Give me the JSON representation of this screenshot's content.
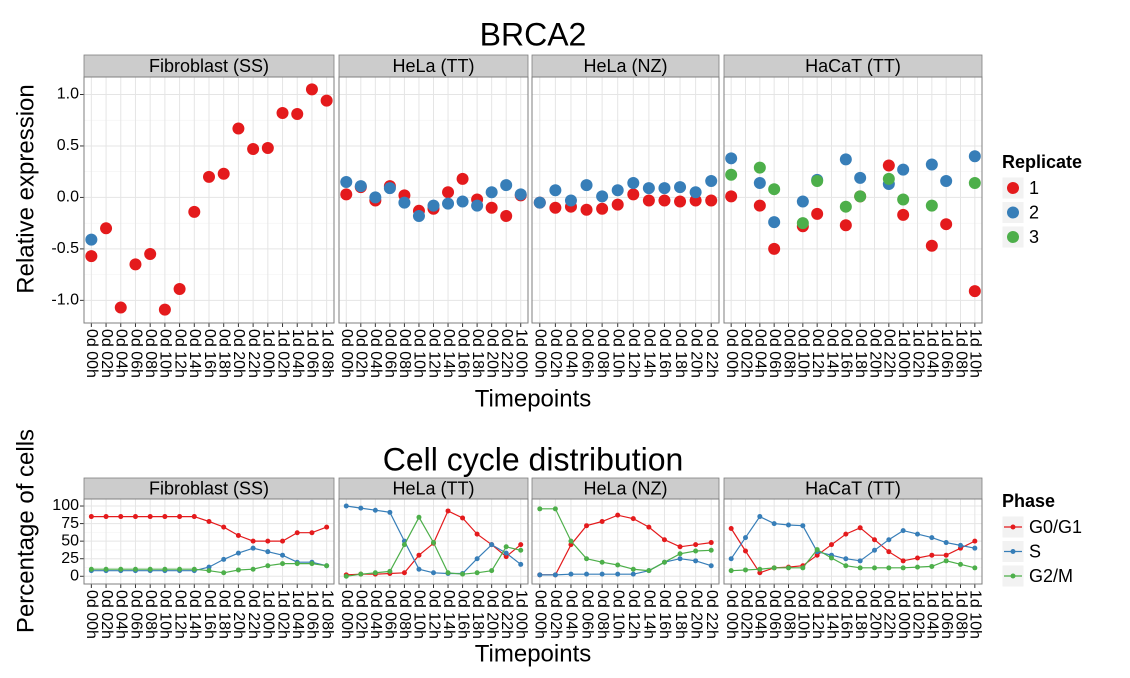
{
  "chart_data": [
    {
      "type": "scatter",
      "title": "BRCA2",
      "xlabel": "Timepoints",
      "ylabel": "Relative expression",
      "ylim": [
        -1.22,
        1.17
      ],
      "yticks": [
        {
          "value": 1,
          "label": "1.0"
        },
        {
          "value": 0.5,
          "label": "0.5"
        },
        {
          "value": 0,
          "label": "0.0"
        },
        {
          "value": -0.5,
          "label": "-0.5"
        },
        {
          "value": -1,
          "label": "-1.0"
        }
      ],
      "grid": true,
      "legend_title": "Replicate",
      "series": [
        {
          "name": "1",
          "color": "#e41a1c"
        },
        {
          "name": "2",
          "color": "#377eb8"
        },
        {
          "name": "3",
          "color": "#4daf4a"
        }
      ],
      "panels": [
        {
          "label": "Fibroblast (SS)",
          "categories": [
            "0d 00h",
            "0d 02h",
            "0d 04h",
            "0d 06h",
            "0d 08h",
            "0d 10h",
            "0d 12h",
            "0d 14h",
            "0d 16h",
            "0d 18h",
            "0d 20h",
            "0d 22h",
            "1d 00h",
            "1d 02h",
            "1d 04h",
            "1d 06h",
            "1d 08h"
          ],
          "series": [
            {
              "values": [
                -0.57,
                -0.3,
                -1.07,
                -0.65,
                -0.55,
                -1.09,
                -0.89,
                -0.14,
                0.2,
                0.23,
                0.67,
                0.47,
                0.48,
                0.82,
                0.81,
                1.05,
                0.94
              ]
            },
            {
              "values": [
                -0.41,
                null,
                null,
                null,
                null,
                null,
                null,
                null,
                null,
                null,
                null,
                null,
                null,
                null,
                null,
                null,
                null
              ]
            }
          ]
        },
        {
          "label": "HeLa (TT)",
          "categories": [
            "0d 00h",
            "0d 02h",
            "0d 04h",
            "0d 06h",
            "0d 08h",
            "0d 10h",
            "0d 12h",
            "0d 14h",
            "0d 16h",
            "0d 18h",
            "0d 20h",
            "0d 22h",
            "1d 00h"
          ],
          "series": [
            {
              "values": [
                0.03,
                0.1,
                -0.03,
                0.11,
                0.02,
                -0.13,
                -0.11,
                0.05,
                0.18,
                -0.02,
                -0.1,
                -0.18,
                0.02
              ]
            },
            {
              "values": [
                0.15,
                0.11,
                0.0,
                0.09,
                -0.05,
                -0.18,
                -0.08,
                -0.06,
                -0.04,
                -0.08,
                0.05,
                0.12,
                0.03
              ]
            }
          ]
        },
        {
          "label": "HeLa (NZ)",
          "categories": [
            "0d 00h",
            "0d 02h",
            "0d 04h",
            "0d 06h",
            "0d 08h",
            "0d 10h",
            "0d 12h",
            "0d 14h",
            "0d 16h",
            "0d 18h",
            "0d 20h",
            "0d 22h"
          ],
          "series": [
            {
              "values": [
                -0.05,
                -0.1,
                -0.09,
                -0.12,
                -0.11,
                -0.07,
                0.03,
                -0.03,
                -0.03,
                -0.04,
                -0.03,
                -0.03
              ]
            },
            {
              "values": [
                -0.05,
                0.07,
                -0.03,
                0.12,
                0.01,
                0.07,
                0.14,
                0.09,
                0.09,
                0.1,
                0.05,
                0.16
              ]
            }
          ]
        },
        {
          "label": "HaCaT (TT)",
          "categories": [
            "0d 00h",
            "0d 02h",
            "0d 04h",
            "0d 06h",
            "0d 08h",
            "0d 10h",
            "0d 12h",
            "0d 14h",
            "0d 16h",
            "0d 18h",
            "0d 20h",
            "0d 22h",
            "1d 00h",
            "1d 02h",
            "1d 04h",
            "1d 06h",
            "1d 08h",
            "1d 10h"
          ],
          "series": [
            {
              "values": [
                0.01,
                null,
                -0.08,
                -0.5,
                null,
                -0.28,
                -0.16,
                null,
                -0.27,
                0.01,
                null,
                0.31,
                -0.17,
                null,
                -0.47,
                -0.26,
                null,
                -0.91
              ]
            },
            {
              "values": [
                0.38,
                null,
                0.14,
                -0.24,
                null,
                -0.04,
                0.17,
                null,
                0.37,
                0.19,
                null,
                0.13,
                0.27,
                null,
                0.32,
                0.16,
                null,
                0.4
              ]
            },
            {
              "values": [
                0.22,
                null,
                0.29,
                0.08,
                null,
                -0.25,
                0.16,
                null,
                -0.09,
                0.01,
                null,
                0.18,
                -0.02,
                null,
                -0.08,
                null,
                null,
                0.14
              ]
            }
          ]
        }
      ]
    },
    {
      "type": "line",
      "title": "Cell cycle distribution",
      "xlabel": "Timepoints",
      "ylabel": "Percentage of cells",
      "ylim": [
        -11,
        110
      ],
      "yticks": [
        100,
        75,
        50,
        25,
        0
      ],
      "grid": true,
      "legend_title": "Phase",
      "series": [
        {
          "name": "G0/G1",
          "color": "#e41a1c"
        },
        {
          "name": "S",
          "color": "#377eb8"
        },
        {
          "name": "G2/M",
          "color": "#4daf4a"
        }
      ],
      "panels": [
        {
          "label": "Fibroblast (SS)",
          "categories": [
            "0d 00h",
            "0d 02h",
            "0d 04h",
            "0d 06h",
            "0d 08h",
            "0d 10h",
            "0d 12h",
            "0d 14h",
            "0d 16h",
            "0d 18h",
            "0d 20h",
            "0d 22h",
            "1d 00h",
            "1d 02h",
            "1d 04h",
            "1d 06h",
            "1d 08h"
          ],
          "series": [
            {
              "values": [
                85,
                85,
                85,
                85,
                85,
                85,
                85,
                85,
                78,
                70,
                58,
                50,
                50,
                50,
                62,
                62,
                70
              ]
            },
            {
              "values": [
                8,
                8,
                8,
                8,
                8,
                8,
                8,
                8,
                13,
                24,
                33,
                40,
                35,
                30,
                20,
                20,
                15
              ]
            },
            {
              "values": [
                10,
                10,
                10,
                10,
                10,
                10,
                10,
                10,
                8,
                5,
                9,
                10,
                15,
                18,
                18,
                18,
                15
              ]
            }
          ]
        },
        {
          "label": "HeLa (TT)",
          "categories": [
            "0d 00h",
            "0d 02h",
            "0d 04h",
            "0d 06h",
            "0d 08h",
            "0d 10h",
            "0d 12h",
            "0d 14h",
            "0d 16h",
            "0d 18h",
            "0d 20h",
            "0d 22h",
            "1d 00h"
          ],
          "series": [
            {
              "values": [
                2,
                3,
                3,
                4,
                5,
                30,
                47,
                93,
                83,
                60,
                45,
                28,
                45
              ]
            },
            {
              "values": [
                100,
                97,
                94,
                91,
                50,
                10,
                5,
                4,
                4,
                25,
                45,
                33,
                17
              ]
            },
            {
              "values": [
                0,
                3,
                5,
                7,
                45,
                84,
                48,
                5,
                3,
                5,
                8,
                42,
                37
              ]
            }
          ]
        },
        {
          "label": "HeLa (NZ)",
          "categories": [
            "0d 00h",
            "0d 02h",
            "0d 04h",
            "0d 06h",
            "0d 08h",
            "0d 10h",
            "0d 12h",
            "0d 14h",
            "0d 16h",
            "0d 18h",
            "0d 20h",
            "0d 22h"
          ],
          "series": [
            {
              "values": [
                2,
                2,
                45,
                72,
                78,
                87,
                82,
                70,
                52,
                42,
                45,
                48
              ]
            },
            {
              "values": [
                2,
                2,
                3,
                3,
                3,
                3,
                3,
                8,
                20,
                25,
                22,
                15
              ]
            },
            {
              "values": [
                96,
                96,
                50,
                25,
                20,
                16,
                10,
                8,
                20,
                32,
                36,
                37
              ]
            }
          ]
        },
        {
          "label": "HaCaT (TT)",
          "categories": [
            "0d 00h",
            "0d 02h",
            "0d 04h",
            "0d 06h",
            "0d 08h",
            "0d 10h",
            "0d 12h",
            "0d 14h",
            "0d 16h",
            "0d 18h",
            "0d 20h",
            "0d 22h",
            "1d 00h",
            "1d 02h",
            "1d 04h",
            "1d 06h",
            "1d 08h",
            "1d 10h"
          ],
          "series": [
            {
              "values": [
                68,
                36,
                5,
                12,
                13,
                15,
                30,
                45,
                60,
                69,
                52,
                35,
                22,
                26,
                30,
                30,
                40,
                50
              ]
            },
            {
              "values": [
                25,
                55,
                85,
                75,
                73,
                72,
                35,
                30,
                25,
                22,
                37,
                52,
                65,
                60,
                55,
                48,
                44,
                40
              ]
            },
            {
              "values": [
                8,
                9,
                10,
                12,
                12,
                12,
                38,
                26,
                15,
                12,
                12,
                12,
                12,
                13,
                14,
                22,
                17,
                12
              ]
            }
          ]
        }
      ]
    }
  ]
}
